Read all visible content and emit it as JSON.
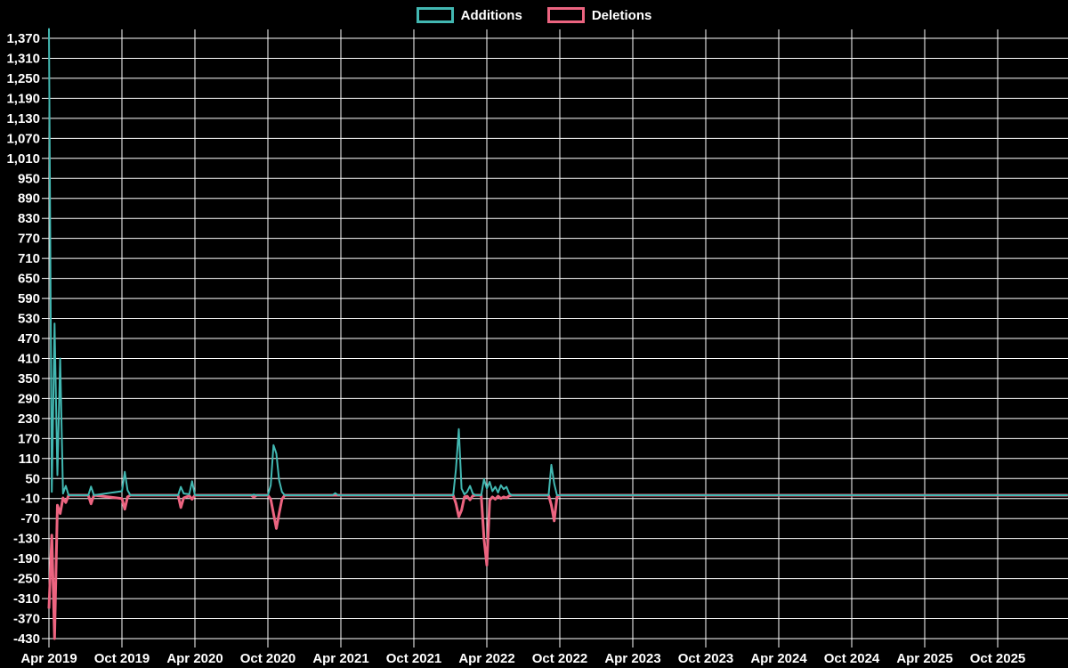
{
  "chart_data": {
    "type": "line",
    "title": "",
    "background_color": "#000000",
    "grid": true,
    "grid_color": "#ffffff",
    "text_color": "#ffffff",
    "legend": {
      "position": "top-center",
      "entries": [
        "Additions",
        "Deletions"
      ]
    },
    "y_axis": {
      "min": -430,
      "max": 1370,
      "step": 60,
      "tick_labels": [
        "1,370",
        "1,310",
        "1,250",
        "1,190",
        "1,130",
        "1,070",
        "1,010",
        "950",
        "890",
        "830",
        "770",
        "710",
        "650",
        "590",
        "530",
        "470",
        "410",
        "350",
        "290",
        "230",
        "170",
        "110",
        "50",
        "-10",
        "-70",
        "-130",
        "-190",
        "-250",
        "-310",
        "-370",
        "-430"
      ]
    },
    "x_axis": {
      "unit": "weeks since first point",
      "weeks_per_tick": 26,
      "tick_labels": [
        "Apr 2019",
        "Oct 2019",
        "Apr 2020",
        "Oct 2020",
        "Apr 2021",
        "Oct 2021",
        "Apr 2022",
        "Oct 2022",
        "Apr 2023",
        "Oct 2023",
        "Apr 2024",
        "Oct 2024",
        "Apr 2025",
        "Oct 2025"
      ]
    },
    "series": [
      {
        "name": "Additions",
        "color": "#42b8b2",
        "points": [
          [
            0,
            1400
          ],
          [
            1,
            10
          ],
          [
            2,
            515
          ],
          [
            3,
            60
          ],
          [
            4,
            410
          ],
          [
            5,
            5
          ],
          [
            6,
            28
          ],
          [
            7,
            0
          ],
          [
            14,
            0
          ],
          [
            15,
            26
          ],
          [
            16,
            0
          ],
          [
            26,
            12
          ],
          [
            27,
            70
          ],
          [
            28,
            15
          ],
          [
            29,
            0
          ],
          [
            46,
            0
          ],
          [
            47,
            25
          ],
          [
            48,
            5
          ],
          [
            50,
            3
          ],
          [
            51,
            42
          ],
          [
            52,
            0
          ],
          [
            72,
            0
          ],
          [
            73,
            2
          ],
          [
            74,
            0
          ],
          [
            78,
            0
          ],
          [
            79,
            30
          ],
          [
            80,
            150
          ],
          [
            81,
            125
          ],
          [
            82,
            45
          ],
          [
            83,
            10
          ],
          [
            84,
            0
          ],
          [
            101,
            0
          ],
          [
            102,
            6
          ],
          [
            103,
            0
          ],
          [
            144,
            0
          ],
          [
            145,
            78
          ],
          [
            146,
            198
          ],
          [
            147,
            20
          ],
          [
            148,
            2
          ],
          [
            149,
            10
          ],
          [
            150,
            28
          ],
          [
            151,
            5
          ],
          [
            152,
            0
          ],
          [
            154,
            0
          ],
          [
            155,
            48
          ],
          [
            156,
            20
          ],
          [
            157,
            40
          ],
          [
            158,
            12
          ],
          [
            159,
            25
          ],
          [
            160,
            8
          ],
          [
            161,
            30
          ],
          [
            162,
            18
          ],
          [
            163,
            25
          ],
          [
            164,
            5
          ],
          [
            165,
            0
          ],
          [
            178,
            0
          ],
          [
            179,
            91
          ],
          [
            180,
            35
          ],
          [
            181,
            0
          ],
          [
            363,
            0
          ]
        ]
      },
      {
        "name": "Deletions",
        "color": "#ec6480",
        "points": [
          [
            0,
            -340
          ],
          [
            1,
            -120
          ],
          [
            2,
            -430
          ],
          [
            3,
            -30
          ],
          [
            4,
            -55
          ],
          [
            5,
            -8
          ],
          [
            6,
            -22
          ],
          [
            7,
            0
          ],
          [
            14,
            0
          ],
          [
            15,
            -26
          ],
          [
            16,
            0
          ],
          [
            26,
            -10
          ],
          [
            27,
            -42
          ],
          [
            28,
            -5
          ],
          [
            29,
            0
          ],
          [
            46,
            0
          ],
          [
            47,
            -37
          ],
          [
            48,
            -8
          ],
          [
            50,
            -2
          ],
          [
            51,
            -12
          ],
          [
            52,
            0
          ],
          [
            72,
            0
          ],
          [
            73,
            -6
          ],
          [
            74,
            0
          ],
          [
            78,
            0
          ],
          [
            79,
            -12
          ],
          [
            80,
            -55
          ],
          [
            81,
            -100
          ],
          [
            82,
            -55
          ],
          [
            83,
            -12
          ],
          [
            84,
            0
          ],
          [
            101,
            0
          ],
          [
            102,
            0
          ],
          [
            103,
            0
          ],
          [
            144,
            0
          ],
          [
            145,
            -25
          ],
          [
            146,
            -64
          ],
          [
            147,
            -45
          ],
          [
            148,
            -5
          ],
          [
            149,
            -3
          ],
          [
            150,
            -14
          ],
          [
            151,
            -2
          ],
          [
            152,
            0
          ],
          [
            154,
            0
          ],
          [
            155,
            -130
          ],
          [
            156,
            -210
          ],
          [
            157,
            -15
          ],
          [
            158,
            -5
          ],
          [
            159,
            -12
          ],
          [
            160,
            -3
          ],
          [
            161,
            -10
          ],
          [
            162,
            -5
          ],
          [
            163,
            -8
          ],
          [
            164,
            -2
          ],
          [
            165,
            0
          ],
          [
            178,
            0
          ],
          [
            179,
            -30
          ],
          [
            180,
            -77
          ],
          [
            181,
            -5
          ],
          [
            182,
            0
          ],
          [
            363,
            0
          ]
        ]
      }
    ]
  }
}
